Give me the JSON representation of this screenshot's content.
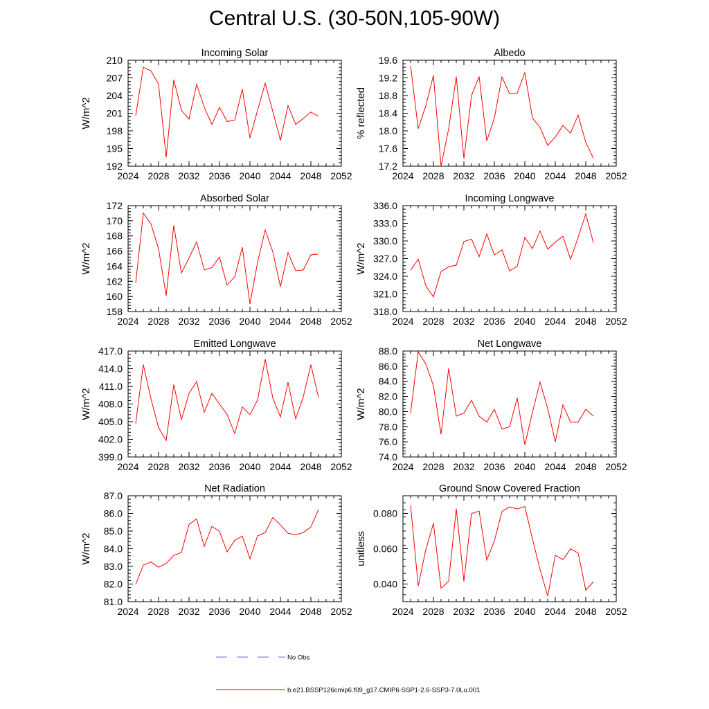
{
  "title": "Central U.S. (30-50N,105-90W)",
  "chart_data": [
    {
      "type": "line",
      "title": "Incoming Solar",
      "xlabel": "",
      "ylabel": "W/m^2",
      "xlim": [
        2024,
        2052
      ],
      "xticks": [
        2024,
        2028,
        2032,
        2036,
        2040,
        2044,
        2048,
        2052
      ],
      "ylim": [
        192,
        210
      ],
      "yticks": [
        "192",
        "195",
        "198",
        "201",
        "204",
        "207",
        "210"
      ],
      "x": [
        2025,
        2026,
        2027,
        2028,
        2029,
        2030,
        2031,
        2032,
        2033,
        2034,
        2035,
        2036,
        2037,
        2038,
        2039,
        2040,
        2041,
        2042,
        2043,
        2044,
        2045,
        2046,
        2047,
        2048,
        2049
      ],
      "series": [
        {
          "values": [
            200.6,
            208.8,
            208.2,
            205.9,
            193.5,
            206.7,
            201.5,
            200.0,
            205.9,
            202.0,
            199.1,
            202.0,
            199.6,
            199.8,
            205.1,
            196.8,
            201.5,
            206.1,
            201.3,
            196.4,
            202.3,
            199.1,
            200.1,
            201.2,
            200.5
          ]
        }
      ]
    },
    {
      "type": "line",
      "title": "Albedo",
      "xlabel": "",
      "ylabel": "% reflected",
      "xlim": [
        2024,
        2052
      ],
      "xticks": [
        2024,
        2028,
        2032,
        2036,
        2040,
        2044,
        2048,
        2052
      ],
      "ylim": [
        17.2,
        19.6
      ],
      "yticks": [
        "17.2",
        "17.6",
        "18.0",
        "18.4",
        "18.8",
        "19.2",
        "19.6"
      ],
      "x": [
        2025,
        2026,
        2027,
        2028,
        2029,
        2030,
        2031,
        2032,
        2033,
        2034,
        2035,
        2036,
        2037,
        2038,
        2039,
        2040,
        2041,
        2042,
        2043,
        2044,
        2045,
        2046,
        2047,
        2048,
        2049
      ],
      "series": [
        {
          "values": [
            19.48,
            18.05,
            18.57,
            19.26,
            17.2,
            18.05,
            19.23,
            17.37,
            18.8,
            19.23,
            17.77,
            18.29,
            19.22,
            18.84,
            18.85,
            19.32,
            18.29,
            18.08,
            17.67,
            17.86,
            18.12,
            17.95,
            18.36,
            17.74,
            17.38
          ]
        }
      ]
    },
    {
      "type": "line",
      "title": "Absorbed Solar",
      "xlabel": "",
      "ylabel": "W/m^2",
      "xlim": [
        2024,
        2052
      ],
      "xticks": [
        2024,
        2028,
        2032,
        2036,
        2040,
        2044,
        2048,
        2052
      ],
      "ylim": [
        158,
        172
      ],
      "yticks": [
        "158",
        "160",
        "162",
        "164",
        "166",
        "168",
        "170",
        "172"
      ],
      "x": [
        2025,
        2026,
        2027,
        2028,
        2029,
        2030,
        2031,
        2032,
        2033,
        2034,
        2035,
        2036,
        2037,
        2038,
        2039,
        2040,
        2041,
        2042,
        2043,
        2044,
        2045,
        2046,
        2047,
        2048,
        2049
      ],
      "series": [
        {
          "values": [
            161.8,
            171.0,
            169.6,
            166.3,
            160.1,
            169.4,
            163.1,
            165.1,
            167.2,
            163.5,
            163.8,
            165.2,
            161.5,
            162.6,
            166.5,
            159.0,
            164.5,
            168.8,
            165.9,
            161.3,
            165.8,
            163.4,
            163.5,
            165.5,
            165.6
          ]
        }
      ]
    },
    {
      "type": "line",
      "title": "Incoming Longwave",
      "xlabel": "",
      "ylabel": "W/m^2",
      "xlim": [
        2024,
        2052
      ],
      "xticks": [
        2024,
        2028,
        2032,
        2036,
        2040,
        2044,
        2048,
        2052
      ],
      "ylim": [
        318.0,
        336.0
      ],
      "yticks": [
        "318.0",
        "321.0",
        "324.0",
        "327.0",
        "330.0",
        "333.0",
        "336.0"
      ],
      "x": [
        2025,
        2026,
        2027,
        2028,
        2029,
        2030,
        2031,
        2032,
        2033,
        2034,
        2035,
        2036,
        2037,
        2038,
        2039,
        2040,
        2041,
        2042,
        2043,
        2044,
        2045,
        2046,
        2047,
        2048,
        2049
      ],
      "series": [
        {
          "values": [
            325.0,
            326.9,
            322.4,
            320.5,
            324.8,
            325.6,
            325.9,
            329.9,
            330.3,
            327.3,
            331.2,
            327.6,
            328.5,
            324.9,
            325.7,
            330.6,
            328.7,
            331.7,
            328.6,
            329.8,
            330.8,
            326.9,
            330.6,
            334.6,
            329.7
          ]
        }
      ]
    },
    {
      "type": "line",
      "title": "Emitted Longwave",
      "xlabel": "",
      "ylabel": "W/m^2",
      "xlim": [
        2024,
        2052
      ],
      "xticks": [
        2024,
        2028,
        2032,
        2036,
        2040,
        2044,
        2048,
        2052
      ],
      "ylim": [
        399.0,
        417.0
      ],
      "yticks": [
        "399.0",
        "402.0",
        "405.0",
        "408.0",
        "411.0",
        "414.0",
        "417.0"
      ],
      "x": [
        2025,
        2026,
        2027,
        2028,
        2029,
        2030,
        2031,
        2032,
        2033,
        2034,
        2035,
        2036,
        2037,
        2038,
        2039,
        2040,
        2041,
        2042,
        2043,
        2044,
        2045,
        2046,
        2047,
        2048,
        2049
      ],
      "series": [
        {
          "values": [
            404.7,
            414.7,
            408.9,
            404.0,
            401.8,
            411.3,
            405.3,
            409.8,
            411.8,
            406.6,
            409.8,
            408.0,
            406.2,
            403.0,
            407.5,
            406.2,
            408.7,
            415.6,
            409.0,
            405.8,
            411.7,
            405.5,
            409.2,
            414.7,
            409.1
          ]
        }
      ]
    },
    {
      "type": "line",
      "title": "Net Longwave",
      "xlabel": "",
      "ylabel": "W/m^2",
      "xlim": [
        2024,
        2052
      ],
      "xticks": [
        2024,
        2028,
        2032,
        2036,
        2040,
        2044,
        2048,
        2052
      ],
      "ylim": [
        74.0,
        88.0
      ],
      "yticks": [
        "74.0",
        "76.0",
        "78.0",
        "80.0",
        "82.0",
        "84.0",
        "86.0",
        "88.0"
      ],
      "x": [
        2025,
        2026,
        2027,
        2028,
        2029,
        2030,
        2031,
        2032,
        2033,
        2034,
        2035,
        2036,
        2037,
        2038,
        2039,
        2040,
        2041,
        2042,
        2043,
        2044,
        2045,
        2046,
        2047,
        2048,
        2049
      ],
      "series": [
        {
          "values": [
            79.8,
            87.9,
            86.3,
            83.4,
            77.0,
            85.7,
            79.4,
            79.8,
            81.5,
            79.4,
            78.6,
            80.3,
            77.7,
            78.0,
            81.8,
            75.6,
            79.9,
            83.9,
            80.4,
            76.0,
            80.9,
            78.6,
            78.6,
            80.3,
            79.4
          ]
        }
      ]
    },
    {
      "type": "line",
      "title": "Net Radiation",
      "xlabel": "",
      "ylabel": "W/m^2",
      "xlim": [
        2024,
        2052
      ],
      "xticks": [
        2024,
        2028,
        2032,
        2036,
        2040,
        2044,
        2048,
        2052
      ],
      "ylim": [
        81.0,
        87.0
      ],
      "yticks": [
        "81.0",
        "82.0",
        "83.0",
        "84.0",
        "85.0",
        "86.0",
        "87.0"
      ],
      "x": [
        2025,
        2026,
        2027,
        2028,
        2029,
        2030,
        2031,
        2032,
        2033,
        2034,
        2035,
        2036,
        2037,
        2038,
        2039,
        2040,
        2041,
        2042,
        2043,
        2044,
        2045,
        2046,
        2047,
        2048,
        2049
      ],
      "series": [
        {
          "values": [
            81.98,
            83.07,
            83.25,
            82.95,
            83.17,
            83.62,
            83.79,
            85.37,
            85.69,
            84.13,
            85.27,
            84.98,
            83.82,
            84.48,
            84.71,
            83.43,
            84.73,
            84.91,
            85.77,
            85.35,
            84.87,
            84.79,
            84.91,
            85.23,
            86.22
          ]
        }
      ]
    },
    {
      "type": "line",
      "title": "Ground Snow Covered Fraction",
      "xlabel": "",
      "ylabel": "unitless",
      "xlim": [
        2024,
        2052
      ],
      "xticks": [
        2024,
        2028,
        2032,
        2036,
        2040,
        2044,
        2048,
        2052
      ],
      "ylim": [
        0.03,
        0.09
      ],
      "yticks": [
        "0.040",
        "0.060",
        "0.080"
      ],
      "ytick_values": [
        0.04,
        0.06,
        0.08
      ],
      "x": [
        2025,
        2026,
        2027,
        2028,
        2029,
        2030,
        2031,
        2032,
        2033,
        2034,
        2035,
        2036,
        2037,
        2038,
        2039,
        2040,
        2041,
        2042,
        2043,
        2044,
        2045,
        2046,
        2047,
        2048,
        2049
      ],
      "series": [
        {
          "values": [
            0.0845,
            0.0389,
            0.0595,
            0.0744,
            0.0376,
            0.0416,
            0.0827,
            0.0415,
            0.0799,
            0.0813,
            0.0536,
            0.0644,
            0.0811,
            0.0837,
            0.0825,
            0.0839,
            0.0656,
            0.0483,
            0.0332,
            0.0563,
            0.0538,
            0.0599,
            0.0576,
            0.0365,
            0.0412
          ]
        }
      ]
    }
  ],
  "legend": {
    "items": [
      {
        "label": "No Obs",
        "color": "#5a6fd8",
        "style": "dashed"
      },
      {
        "label": "b.e21.BSSP126cmip6.f09_g17.CMIP6-SSP1-2.6-SSP3-7.0Lu.001",
        "color": "#ff0000",
        "style": "solid"
      }
    ]
  },
  "colors": {
    "series": "#ff0000",
    "axes": "#000000",
    "obs": "#5a6fd8"
  }
}
